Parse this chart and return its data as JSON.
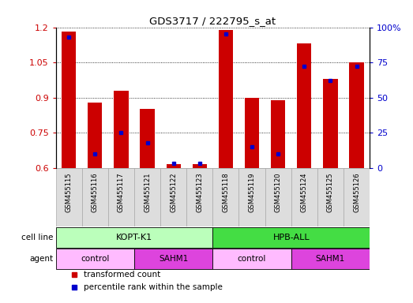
{
  "title": "GDS3717 / 222795_s_at",
  "samples": [
    "GSM455115",
    "GSM455116",
    "GSM455117",
    "GSM455121",
    "GSM455122",
    "GSM455123",
    "GSM455118",
    "GSM455119",
    "GSM455120",
    "GSM455124",
    "GSM455125",
    "GSM455126"
  ],
  "transformed_counts": [
    1.18,
    0.88,
    0.93,
    0.85,
    0.615,
    0.615,
    1.19,
    0.9,
    0.89,
    1.13,
    0.98,
    1.05
  ],
  "percentile_ranks": [
    93,
    10,
    25,
    18,
    3,
    3,
    95,
    15,
    10,
    72,
    62,
    72
  ],
  "ylim": [
    0.6,
    1.2
  ],
  "y2lim": [
    0,
    100
  ],
  "yticks": [
    0.6,
    0.75,
    0.9,
    1.05,
    1.2
  ],
  "y2ticks": [
    0,
    25,
    50,
    75,
    100
  ],
  "bar_color": "#cc0000",
  "dot_color": "#0000cc",
  "bar_width": 0.55,
  "cell_lines": [
    {
      "label": "KOPT-K1",
      "start": 0,
      "end": 5,
      "color": "#bbffbb"
    },
    {
      "label": "HPB-ALL",
      "start": 6,
      "end": 11,
      "color": "#44dd44"
    }
  ],
  "agents": [
    {
      "label": "control",
      "start": 0,
      "end": 2,
      "color": "#ffbbff"
    },
    {
      "label": "SAHM1",
      "start": 3,
      "end": 5,
      "color": "#dd44dd"
    },
    {
      "label": "control",
      "start": 6,
      "end": 8,
      "color": "#ffbbff"
    },
    {
      "label": "SAHM1",
      "start": 9,
      "end": 11,
      "color": "#dd44dd"
    }
  ],
  "legend_items": [
    {
      "label": "transformed count",
      "color": "#cc0000",
      "marker": "s"
    },
    {
      "label": "percentile rank within the sample",
      "color": "#0000cc",
      "marker": "s"
    }
  ],
  "cell_line_label": "cell line",
  "agent_label": "agent",
  "background_color": "#ffffff",
  "axis_label_color_left": "#cc0000",
  "axis_label_color_right": "#0000cc",
  "tick_box_color": "#dddddd",
  "tick_box_edge": "#aaaaaa"
}
